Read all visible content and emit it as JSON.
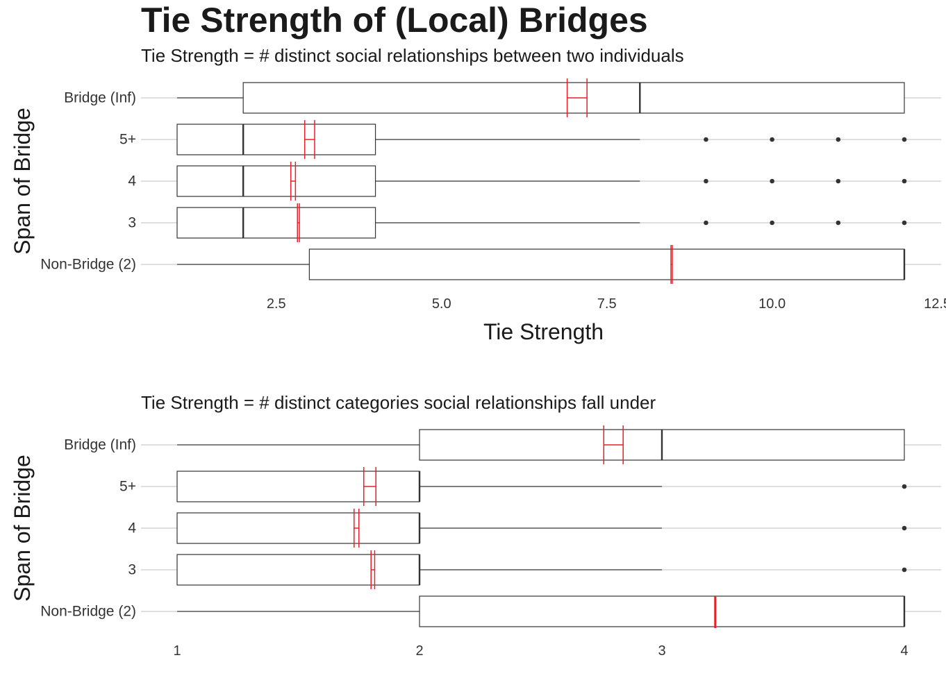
{
  "title": "Tie Strength of (Local) Bridges",
  "colors": {
    "box": "#333333",
    "grid": "#bebebe",
    "mean": "#ee1c25",
    "outlier": "#333333"
  },
  "chart_data": [
    {
      "type": "boxplot",
      "orientation": "horizontal",
      "subtitle": "Tie Strength = # distinct social relationships between two individuals",
      "xlabel": "Tie Strength",
      "ylabel": "Span of Bridge",
      "xlim": [
        1,
        12.5
      ],
      "xticks": [
        2.5,
        5.0,
        7.5,
        10.0,
        12.5
      ],
      "xtick_labels": [
        "2.5",
        "5.0",
        "7.5",
        "10.0",
        "12.5"
      ],
      "grid": "horizontal-major",
      "categories": [
        "Bridge (Inf)",
        "5+",
        "4",
        "3",
        "Non-Bridge (2)"
      ],
      "boxes": [
        {
          "category": "Bridge (Inf)",
          "whisker_low": 1,
          "q1": 2,
          "median": 8,
          "q3": 12,
          "whisker_high": 12,
          "mean": 7.05,
          "mean_ci": [
            6.9,
            7.2
          ],
          "outliers": []
        },
        {
          "category": "5+",
          "whisker_low": 1,
          "q1": 1,
          "median": 2,
          "q3": 4,
          "whisker_high": 8,
          "mean": 3.0,
          "mean_ci": [
            2.93,
            3.08
          ],
          "outliers": [
            9,
            10,
            11,
            12
          ]
        },
        {
          "category": "4",
          "whisker_low": 1,
          "q1": 1,
          "median": 2,
          "q3": 4,
          "whisker_high": 8,
          "mean": 2.75,
          "mean_ci": [
            2.72,
            2.79
          ],
          "outliers": [
            9,
            10,
            11,
            12
          ]
        },
        {
          "category": "3",
          "whisker_low": 1,
          "q1": 1,
          "median": 2,
          "q3": 4,
          "whisker_high": 8,
          "mean": 2.83,
          "mean_ci": [
            2.82,
            2.85
          ],
          "outliers": [
            9,
            10,
            11,
            12
          ]
        },
        {
          "category": "Non-Bridge (2)",
          "whisker_low": 1,
          "q1": 3,
          "median": 12,
          "q3": 12,
          "whisker_high": 12,
          "mean": 8.48,
          "mean_ci": [
            8.47,
            8.49
          ],
          "outliers": []
        }
      ]
    },
    {
      "type": "boxplot",
      "orientation": "horizontal",
      "subtitle": "Tie Strength = # distinct categories social relationships fall under",
      "xlabel": "",
      "ylabel": "Span of Bridge",
      "xlim": [
        1,
        4
      ],
      "xticks": [
        1,
        2,
        3,
        4
      ],
      "xtick_labels": [
        "1",
        "2",
        "3",
        "4"
      ],
      "grid": "horizontal-major",
      "categories": [
        "Bridge (Inf)",
        "5+",
        "4",
        "3",
        "Non-Bridge (2)"
      ],
      "boxes": [
        {
          "category": "Bridge (Inf)",
          "whisker_low": 1,
          "q1": 2,
          "median": 3,
          "q3": 4,
          "whisker_high": 4,
          "mean": 2.8,
          "mean_ci": [
            2.76,
            2.84
          ],
          "outliers": []
        },
        {
          "category": "5+",
          "whisker_low": 1,
          "q1": 1,
          "median": 2,
          "q3": 2,
          "whisker_high": 3,
          "mean": 1.8,
          "mean_ci": [
            1.77,
            1.82
          ],
          "outliers": [
            4
          ]
        },
        {
          "category": "4",
          "whisker_low": 1,
          "q1": 1,
          "median": 2,
          "q3": 2,
          "whisker_high": 3,
          "mean": 1.74,
          "mean_ci": [
            1.73,
            1.75
          ],
          "outliers": [
            4
          ]
        },
        {
          "category": "3",
          "whisker_low": 1,
          "q1": 1,
          "median": 2,
          "q3": 2,
          "whisker_high": 3,
          "mean": 1.81,
          "mean_ci": [
            1.8,
            1.815
          ],
          "outliers": [
            4
          ]
        },
        {
          "category": "Non-Bridge (2)",
          "whisker_low": 1,
          "q1": 2,
          "median": 4,
          "q3": 4,
          "whisker_high": 4,
          "mean": 3.22,
          "mean_ci": [
            3.22,
            3.22
          ],
          "outliers": []
        }
      ]
    }
  ]
}
